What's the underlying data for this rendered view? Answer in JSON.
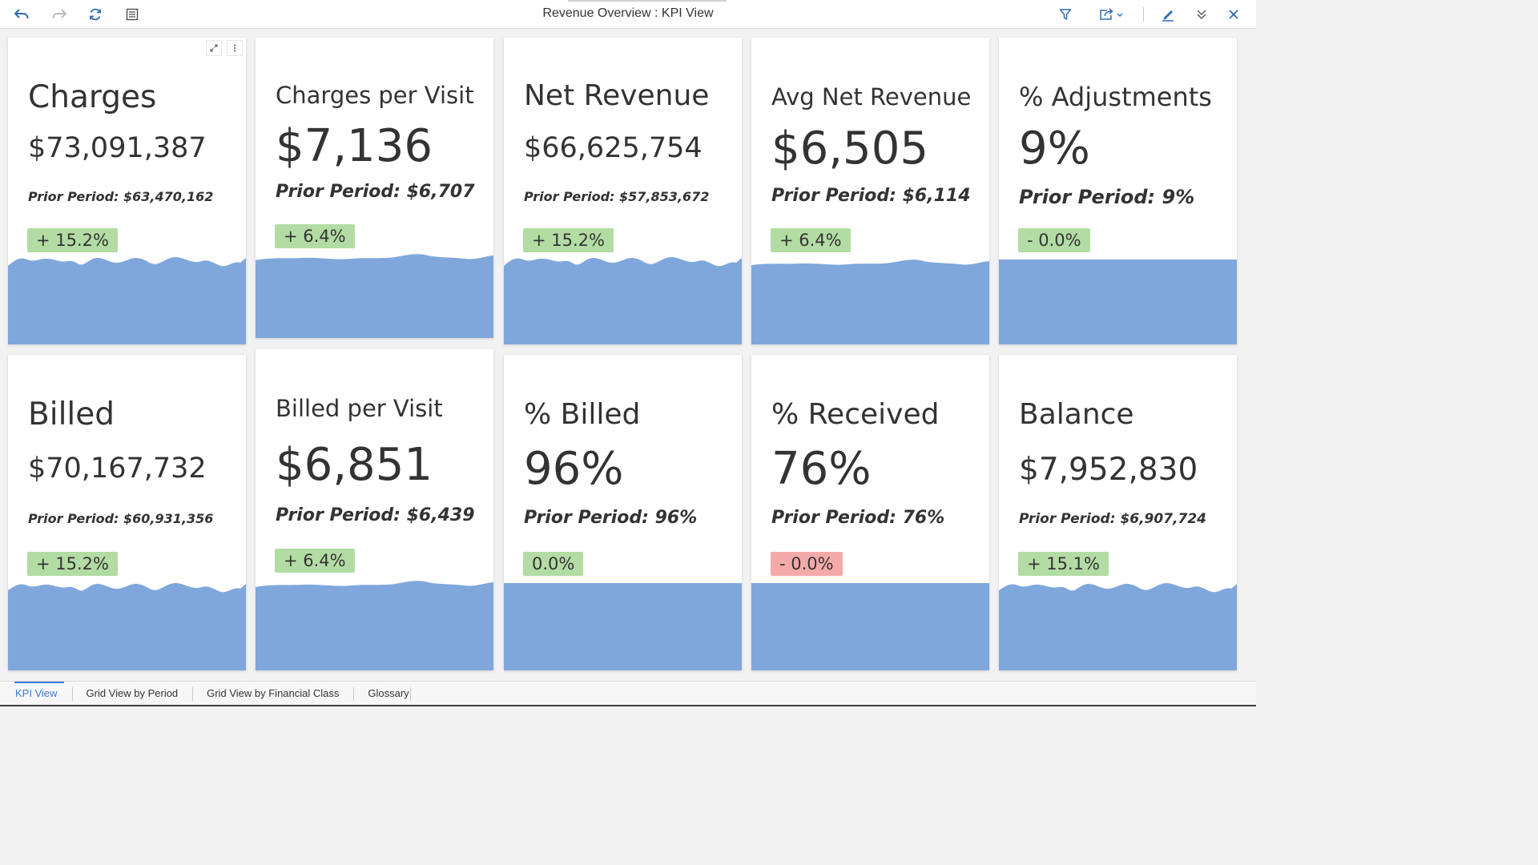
{
  "toolbar": {
    "title": "Revenue Overview : KPI View",
    "left_buttons": [
      {
        "name": "undo-button",
        "icon": "undo-icon"
      },
      {
        "name": "redo-button",
        "icon": "redo-icon"
      },
      {
        "name": "refresh-button",
        "icon": "refresh-icon"
      },
      {
        "name": "details-button",
        "icon": "list-icon"
      }
    ],
    "right_buttons": [
      {
        "name": "filter-button",
        "icon": "filter-icon"
      },
      {
        "name": "share-button",
        "icon": "share-icon"
      },
      {
        "name": "edit-button",
        "icon": "pencil-icon"
      },
      {
        "name": "collapse-button",
        "icon": "double-chevron-down-icon"
      },
      {
        "name": "close-button",
        "icon": "close-icon"
      }
    ],
    "accent_color": "#3b7bd1"
  },
  "kpis": [
    {
      "title": "Charges",
      "value": "$73,091,387",
      "prior": "Prior Period: $63,470,162",
      "change": "+ 15.2%",
      "change_status": "positive",
      "trend": "wavy"
    },
    {
      "title": "Charges per Visit",
      "value": "$7,136",
      "prior": "Prior Period: $6,707",
      "change": "+ 6.4%",
      "change_status": "positive",
      "trend": "rising"
    },
    {
      "title": "Net Revenue",
      "value": "$66,625,754",
      "prior": "Prior Period: $57,853,672",
      "change": "+ 15.2%",
      "change_status": "positive",
      "trend": "wavy"
    },
    {
      "title": "Avg Net Revenue",
      "value": "$6,505",
      "prior": "Prior Period: $6,114",
      "change": "+ 6.4%",
      "change_status": "positive",
      "trend": "rising"
    },
    {
      "title": "% Adjustments",
      "value": "9%",
      "prior": "Prior Period: 9%",
      "change": "- 0.0%",
      "change_status": "positive",
      "trend": "flat"
    },
    {
      "title": "Billed",
      "value": "$70,167,732",
      "prior": "Prior Period: $60,931,356",
      "change": "+ 15.2%",
      "change_status": "positive",
      "trend": "wavy"
    },
    {
      "title": "Billed per Visit",
      "value": "$6,851",
      "prior": "Prior Period: $6,439",
      "change": "+ 6.4%",
      "change_status": "positive",
      "trend": "rising"
    },
    {
      "title": "% Billed",
      "value": "96%",
      "prior": "Prior Period: 96%",
      "change": "0.0%",
      "change_status": "positive",
      "trend": "flat"
    },
    {
      "title": "% Received",
      "value": "76%",
      "prior": "Prior Period: 76%",
      "change": "- 0.0%",
      "change_status": "negative",
      "trend": "flat"
    },
    {
      "title": "Balance",
      "value": "$7,952,830",
      "prior": "Prior Period: $6,907,724",
      "change": "+ 15.1%",
      "change_status": "positive",
      "trend": "wavy"
    }
  ],
  "card_actions": {
    "expand_icon": "expand-icon",
    "more_icon": "more-vertical-icon"
  },
  "colors": {
    "positive_badge": "#b3dca4",
    "negative_badge": "#f5aaaa",
    "sparkline_fill": "#7fa7dc"
  },
  "tabs": [
    {
      "label": "KPI View",
      "active": true
    },
    {
      "label": "Grid View by Period",
      "active": false
    },
    {
      "label": "Grid View by Financial Class",
      "active": false
    },
    {
      "label": "Glossary",
      "active": false
    }
  ]
}
